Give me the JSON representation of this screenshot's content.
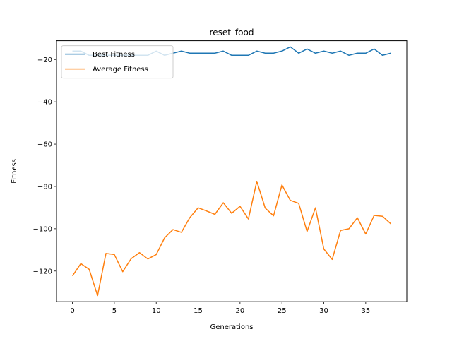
{
  "chart_data": {
    "type": "line",
    "title": "reset_food",
    "xlabel": "Generations",
    "ylabel": "Fitness",
    "xlim": [
      -1.9,
      39.9
    ],
    "ylim": [
      -134.5,
      -11.1
    ],
    "x_ticks": [
      0,
      5,
      10,
      15,
      20,
      25,
      30,
      35
    ],
    "y_ticks": [
      -120,
      -100,
      -80,
      -60,
      -40,
      -20
    ],
    "legend_position": "top-left",
    "grid": false,
    "x": [
      0,
      1,
      2,
      3,
      4,
      5,
      6,
      7,
      8,
      9,
      10,
      11,
      12,
      13,
      14,
      15,
      16,
      17,
      18,
      19,
      20,
      21,
      22,
      23,
      24,
      25,
      26,
      27,
      28,
      29,
      30,
      31,
      32,
      33,
      34,
      35,
      36,
      37,
      38
    ],
    "series": [
      {
        "name": "Best Fitness",
        "color": "#1f77b4",
        "values": [
          -16,
          -16,
          -18,
          -18,
          -18,
          -18,
          -18,
          -18,
          -18,
          -18,
          -16,
          -18,
          -17,
          -16,
          -17,
          -17,
          -17,
          -17,
          -16,
          -18,
          -18,
          -18,
          -16,
          -17,
          -17,
          -16,
          -14,
          -17,
          -15,
          -17,
          -16,
          -17,
          -16,
          -18,
          -17,
          -17,
          -15,
          -18,
          -17
        ]
      },
      {
        "name": "Average Fitness",
        "color": "#ff7f0e",
        "values": [
          -122.3,
          -116.5,
          -119.2,
          -131.6,
          -111.7,
          -112.2,
          -120.3,
          -114.2,
          -111.3,
          -114.3,
          -112.2,
          -104.3,
          -100.4,
          -101.7,
          -94.8,
          -90.1,
          -91.6,
          -93.2,
          -87.7,
          -92.7,
          -89.4,
          -95.4,
          -77.6,
          -90.2,
          -93.9,
          -79.3,
          -86.6,
          -88.0,
          -101.3,
          -90.1,
          -109.6,
          -114.5,
          -100.8,
          -100.0,
          -94.8,
          -102.5,
          -93.7,
          -94.1,
          -97.7
        ]
      }
    ]
  }
}
